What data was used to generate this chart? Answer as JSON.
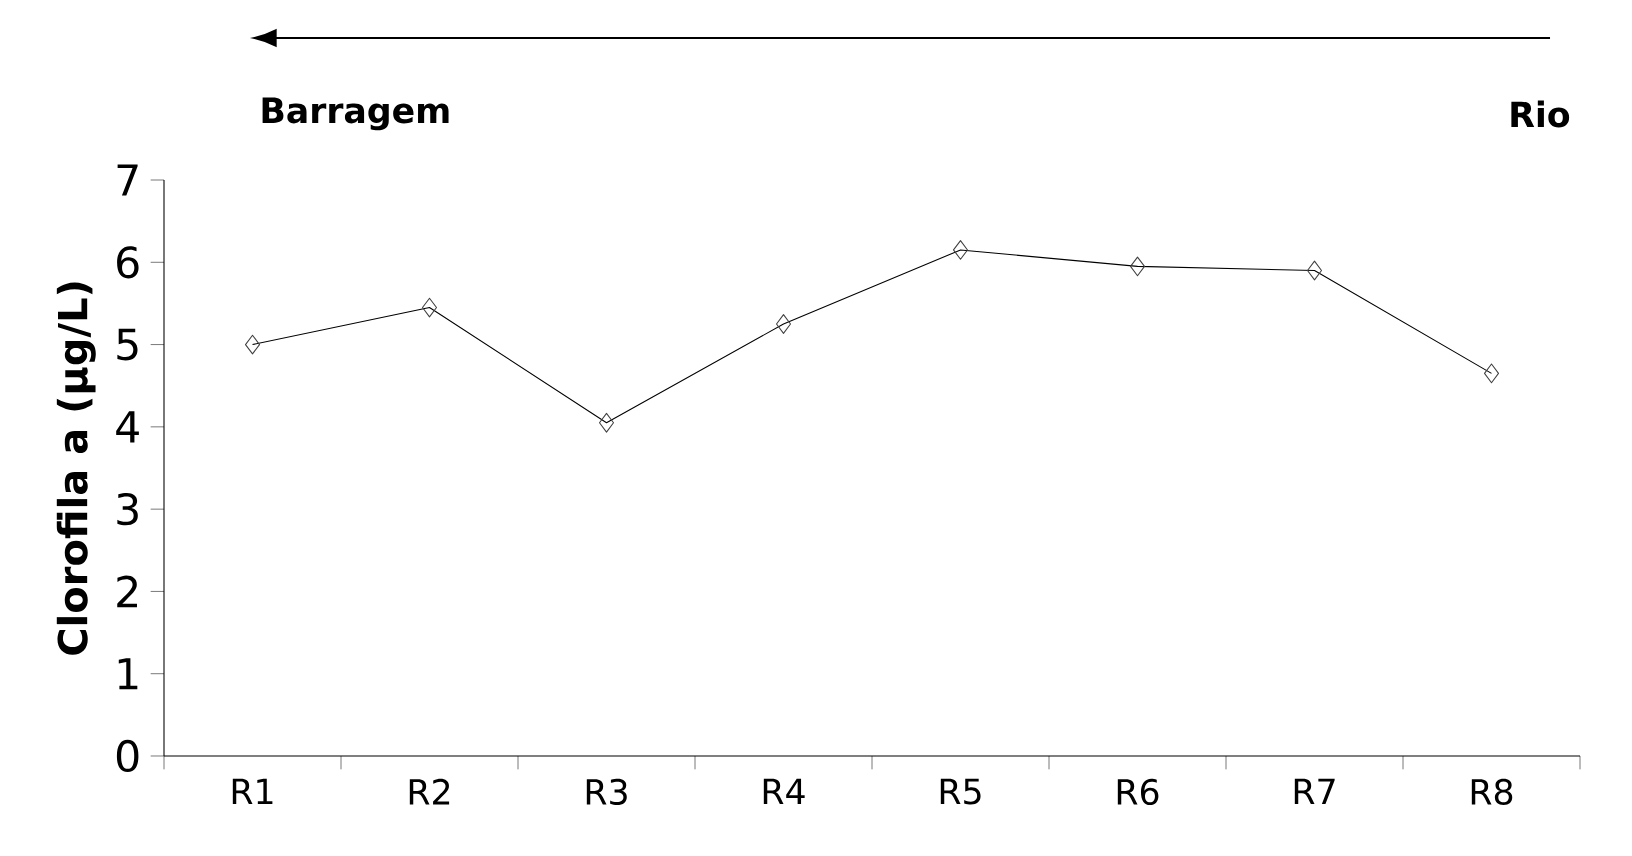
{
  "chart_data": {
    "type": "line",
    "ylabel": "Clorofila a (µg/L)",
    "categories": [
      "R1",
      "R2",
      "R3",
      "R4",
      "R5",
      "R6",
      "R7",
      "R8"
    ],
    "values": [
      5.0,
      5.45,
      4.05,
      5.25,
      6.15,
      5.95,
      5.9,
      4.65
    ],
    "color": "#000000",
    "marker": "diamond",
    "line_style": "solid",
    "ylim": [
      0,
      7
    ],
    "yticks": [
      0,
      1,
      2,
      3,
      4,
      5,
      6,
      7
    ],
    "grid": false,
    "annotations": [
      "Barragem",
      "Rio"
    ]
  }
}
